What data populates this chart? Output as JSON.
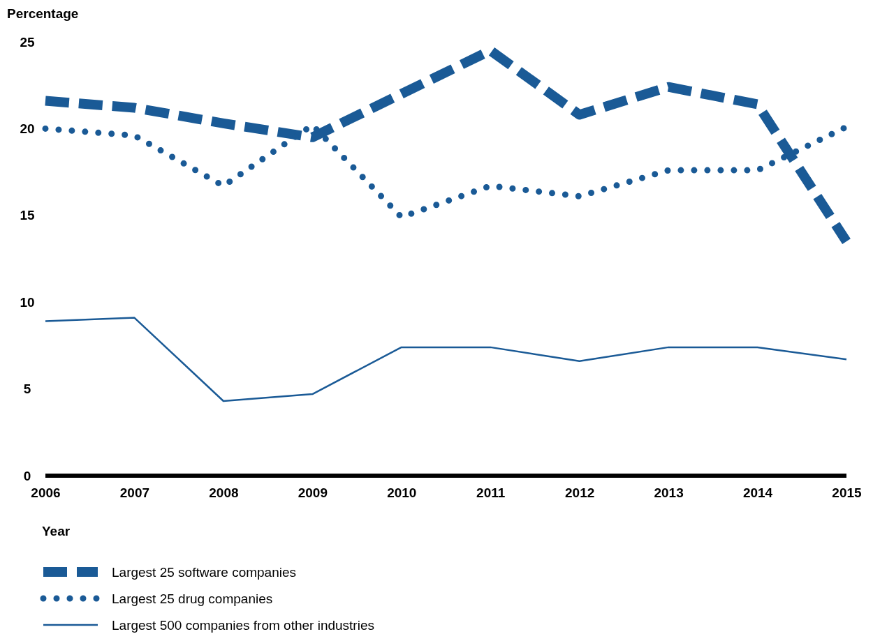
{
  "chart_data": {
    "type": "line",
    "ylabel": "Percentage",
    "xlabel": "Year",
    "categories": [
      "2006",
      "2007",
      "2008",
      "2009",
      "2010",
      "2011",
      "2012",
      "2013",
      "2014",
      "2015"
    ],
    "ylim": [
      0,
      25
    ],
    "yticks": [
      0,
      5,
      10,
      15,
      20,
      25
    ],
    "grid": false,
    "legend": "bottom",
    "marker": "none",
    "series": [
      {
        "name": "Largest 25 software companies",
        "color": "#1a5a96",
        "line_style": "dashed",
        "values": [
          21.6,
          21.2,
          20.3,
          19.5,
          22.0,
          24.5,
          20.8,
          22.4,
          21.4,
          13.5
        ]
      },
      {
        "name": "Largest 25 drug companies",
        "color": "#1a5a96",
        "line_style": "dotted",
        "values": [
          20.0,
          19.6,
          16.7,
          20.2,
          14.9,
          16.7,
          16.1,
          17.6,
          17.6,
          20.1
        ]
      },
      {
        "name": "Largest 500 companies from other industries",
        "color": "#1a5a96",
        "line_style": "solid",
        "values": [
          8.9,
          9.1,
          4.3,
          4.7,
          7.4,
          7.4,
          6.6,
          7.4,
          7.4,
          6.7
        ]
      }
    ]
  }
}
